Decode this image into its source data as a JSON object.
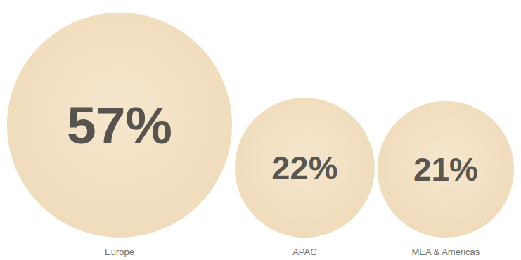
{
  "chart_data": {
    "type": "bubble",
    "categories": [
      "Europe",
      "APAC",
      "MEA & Americas"
    ],
    "values": [
      57,
      22,
      21
    ],
    "value_labels": [
      "57%",
      "22%",
      "21%"
    ],
    "data_labels": true,
    "color": "#ebd2a8",
    "tick_labels": false
  }
}
